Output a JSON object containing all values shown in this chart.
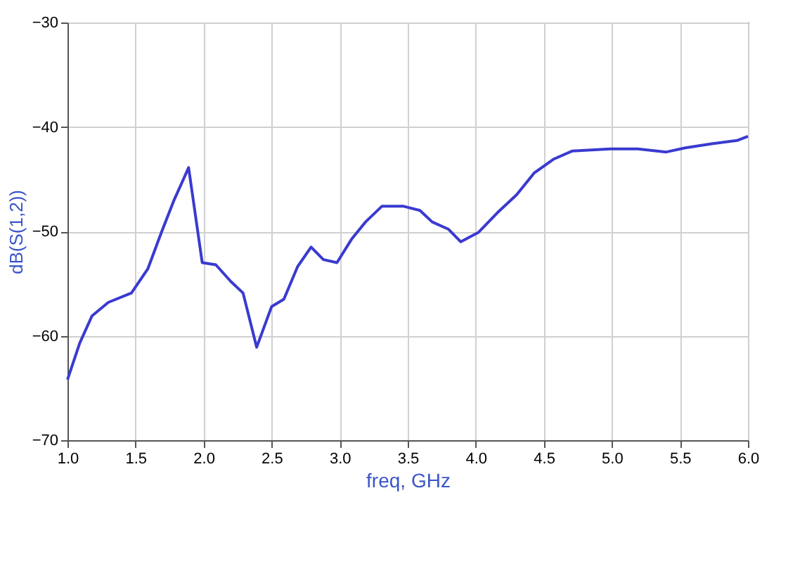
{
  "chart_data": {
    "type": "line",
    "xlabel": "freq, GHz",
    "ylabel": "dB(S(1,2))",
    "xlim": [
      1.0,
      6.0
    ],
    "ylim": [
      -70,
      -30
    ],
    "xticks": [
      {
        "value": 1.0,
        "label": "1.0"
      },
      {
        "value": 1.5,
        "label": "1.5"
      },
      {
        "value": 2.0,
        "label": "2.0"
      },
      {
        "value": 2.5,
        "label": "2.5"
      },
      {
        "value": 3.0,
        "label": "3.0"
      },
      {
        "value": 3.5,
        "label": "3.5"
      },
      {
        "value": 4.0,
        "label": "4.0"
      },
      {
        "value": 4.5,
        "label": "4.5"
      },
      {
        "value": 5.0,
        "label": "5.0"
      },
      {
        "value": 5.5,
        "label": "5.5"
      },
      {
        "value": 6.0,
        "label": "6.0"
      }
    ],
    "yticks": [
      -70,
      -60,
      -50,
      -40,
      -30
    ],
    "grid": true,
    "marker": "none",
    "line_style": "solid",
    "series": [
      {
        "color": "#3a3ad0",
        "x": [
          1.0,
          1.09,
          1.18,
          1.3,
          1.47,
          1.59,
          1.69,
          1.78,
          1.89,
          1.99,
          2.09,
          2.2,
          2.29,
          2.39,
          2.5,
          2.59,
          2.69,
          2.79,
          2.88,
          2.98,
          3.09,
          3.19,
          3.31,
          3.47,
          3.59,
          3.68,
          3.8,
          3.89,
          4.02,
          4.16,
          4.3,
          4.43,
          4.57,
          4.71,
          4.99,
          5.19,
          5.4,
          5.54,
          5.74,
          5.92,
          6.0
        ],
        "values": [
          -64.2,
          -60.7,
          -58.1,
          -56.8,
          -55.9,
          -53.6,
          -50.1,
          -47.1,
          -43.9,
          -53.0,
          -53.2,
          -54.8,
          -55.9,
          -61.1,
          -57.2,
          -56.5,
          -53.4,
          -51.5,
          -52.7,
          -53.0,
          -50.7,
          -49.1,
          -47.6,
          -47.6,
          -48.0,
          -49.1,
          -49.8,
          -51.0,
          -50.1,
          -48.2,
          -46.5,
          -44.4,
          -43.1,
          -42.3,
          -42.1,
          -42.1,
          -42.4,
          -42.0,
          -41.6,
          -41.3,
          -40.9
        ]
      }
    ]
  }
}
